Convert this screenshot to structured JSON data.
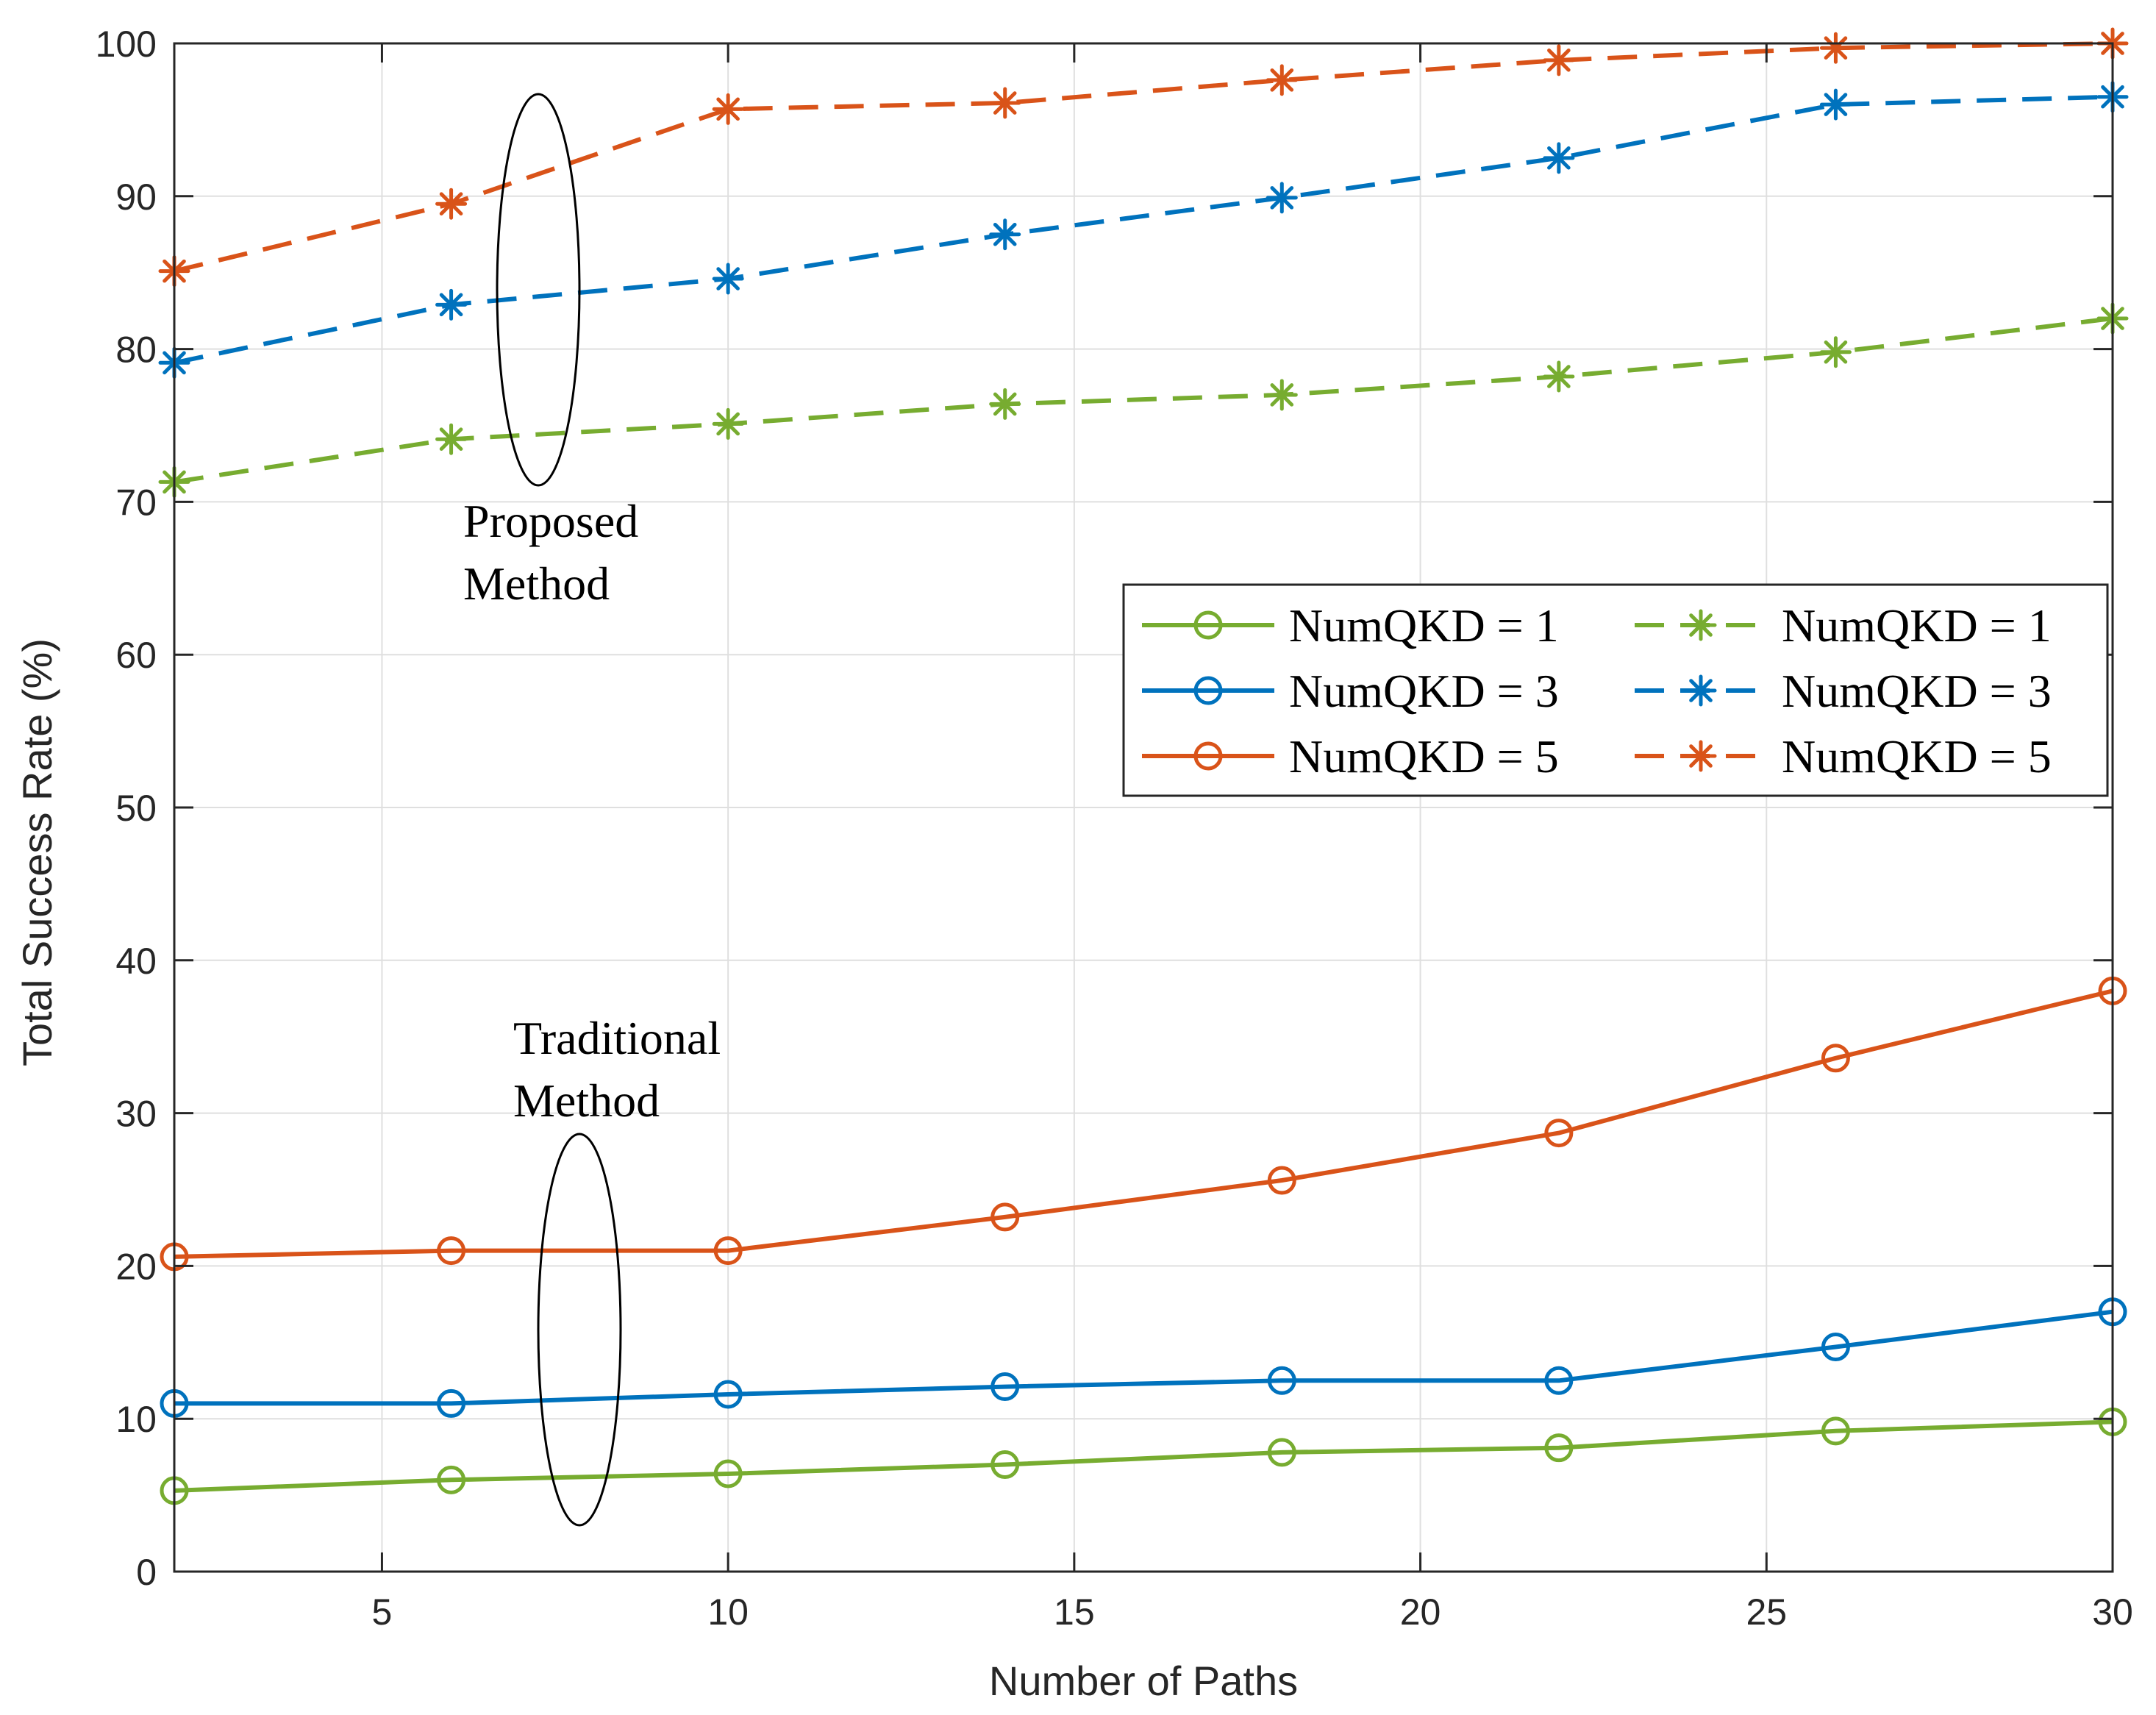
{
  "chart_data": {
    "type": "line",
    "title": "",
    "xlabel": "Number of Paths",
    "ylabel": "Total Success Rate (%)",
    "xlim": [
      2,
      30
    ],
    "ylim": [
      0,
      100
    ],
    "xticks": [
      5,
      10,
      15,
      20,
      25,
      30
    ],
    "yticks": [
      0,
      10,
      20,
      30,
      40,
      50,
      60,
      70,
      80,
      90,
      100
    ],
    "grid": true,
    "x": [
      2,
      6,
      10,
      14,
      18,
      22,
      26,
      30
    ],
    "series": [
      {
        "name": "NumQKD = 1",
        "group": "Traditional Method",
        "color": "#77ac30",
        "style": "solid",
        "marker": "circle",
        "values": [
          5.3,
          6.0,
          6.4,
          7.0,
          7.8,
          8.1,
          9.2,
          9.8
        ]
      },
      {
        "name": "NumQKD = 3",
        "group": "Traditional Method",
        "color": "#0072bd",
        "style": "solid",
        "marker": "circle",
        "values": [
          11.0,
          11.0,
          11.6,
          12.1,
          12.5,
          12.5,
          14.7,
          17.0
        ]
      },
      {
        "name": "NumQKD = 5",
        "group": "Traditional Method",
        "color": "#d95319",
        "style": "solid",
        "marker": "circle",
        "values": [
          20.6,
          21.0,
          21.0,
          23.2,
          25.6,
          28.7,
          33.6,
          38.0
        ]
      },
      {
        "name": "NumQKD = 1",
        "group": "Proposed Method",
        "color": "#77ac30",
        "style": "dashed",
        "marker": "asterisk",
        "values": [
          71.3,
          74.1,
          75.1,
          76.4,
          77.0,
          78.2,
          79.8,
          82.0
        ]
      },
      {
        "name": "NumQKD = 3",
        "group": "Proposed Method",
        "color": "#0072bd",
        "style": "dashed",
        "marker": "asterisk",
        "values": [
          79.1,
          82.9,
          84.6,
          87.5,
          89.9,
          92.5,
          96.0,
          96.5
        ]
      },
      {
        "name": "NumQKD = 5",
        "group": "Proposed Method",
        "color": "#d95319",
        "style": "dashed",
        "marker": "asterisk",
        "values": [
          85.1,
          89.5,
          95.7,
          96.1,
          97.6,
          98.9,
          99.7,
          100.0
        ]
      }
    ],
    "legend_position": "right, upper-middle",
    "annotations": [
      {
        "id": "proposed",
        "line1": "Proposed",
        "line2": "Method"
      },
      {
        "id": "traditional",
        "line1": "Traditional",
        "line2": "Method"
      }
    ]
  }
}
